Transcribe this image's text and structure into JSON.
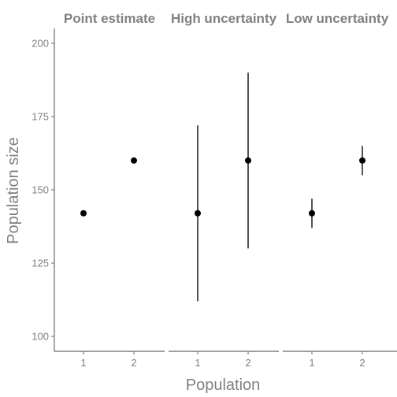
{
  "chart_data": {
    "type": "scatter",
    "ylabel": "Population size",
    "xlabel": "Population",
    "ylim": [
      100,
      200
    ],
    "yticks": [
      100,
      125,
      150,
      175,
      200
    ],
    "x_categories": [
      "1",
      "2"
    ],
    "grid": false,
    "panels": [
      {
        "title": "Point estimate",
        "points": [
          {
            "x": "1",
            "y": 142
          },
          {
            "x": "2",
            "y": 160
          }
        ]
      },
      {
        "title": "High uncertainty",
        "points": [
          {
            "x": "1",
            "y": 142,
            "ymin": 112,
            "ymax": 172
          },
          {
            "x": "2",
            "y": 160,
            "ymin": 130,
            "ymax": 190
          }
        ]
      },
      {
        "title": "Low uncertainty",
        "points": [
          {
            "x": "1",
            "y": 142,
            "ymin": 137,
            "ymax": 147
          },
          {
            "x": "2",
            "y": 160,
            "ymin": 155,
            "ymax": 165
          }
        ]
      }
    ]
  }
}
